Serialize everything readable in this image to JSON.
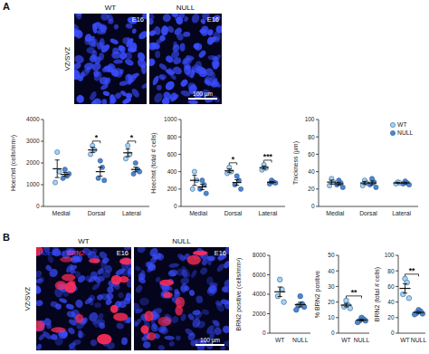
{
  "panels": [
    {
      "label": "A",
      "region": "VZ/SVZ",
      "stage": "E16",
      "conditions": [
        "WT",
        "NULL"
      ],
      "scale_bar": "100 µm",
      "color": "#3a4dff"
    },
    {
      "label": "B",
      "region": "VZ/SVZ",
      "stage": "E16",
      "conditions": [
        "WT",
        "NULL"
      ],
      "scale_bar": "100 µm",
      "channels": [
        {
          "name": "Hoechst",
          "color": "#3a4dff"
        },
        {
          "name": "BRN2",
          "color": "#ff2d5a"
        }
      ]
    }
  ],
  "chart_data": [
    {
      "type": "dot_plot",
      "ylabel": "Hoechst (cells/mm²)",
      "categories": [
        "Medial",
        "Dorsal",
        "Lateral"
      ],
      "ylim": [
        0,
        4000
      ],
      "yticks": [
        0,
        1000,
        2000,
        3000,
        4000
      ],
      "series": [
        {
          "name": "WT",
          "color": "#a9d3ee",
          "values": [
            1733,
            2600,
            2467
          ],
          "error": [
            404,
            115,
            176
          ],
          "points": [
            [
              2500,
              1600,
              1100
            ],
            [
              2800,
              2600,
              2400
            ],
            [
              2800,
              2400,
              2200
            ]
          ]
        },
        {
          "name": "NULL",
          "color": "#4f86cc",
          "values": [
            1475,
            1600,
            1700
          ],
          "error": [
            85,
            208,
            108
          ],
          "points": [
            [
              1700,
              1400,
              1300,
              1500
            ],
            [
              2100,
              1800,
              1300,
              1200
            ],
            [
              2000,
              1700,
              1500,
              1600
            ]
          ]
        }
      ],
      "annotations": [
        {
          "text": "*",
          "category": 1
        },
        {
          "text": "*",
          "category": 2
        }
      ]
    },
    {
      "type": "dot_plot",
      "ylabel": "Hoechst (total # cells)",
      "categories": [
        "Medial",
        "Dorsal",
        "Lateral"
      ],
      "ylim": [
        0,
        1000
      ],
      "yticks": [
        0,
        200,
        400,
        600,
        800,
        1000
      ],
      "series": [
        {
          "name": "WT",
          "color": "#a9d3ee",
          "values": [
            300,
            410,
            447
          ],
          "error": [
            58,
            21,
            18
          ],
          "points": [
            [
              400,
              300,
              200
            ],
            [
              450,
              400,
              380
            ],
            [
              480,
              440,
              420
            ]
          ]
        },
        {
          "name": "NULL",
          "color": "#4f86cc",
          "values": [
            225,
            275,
            278
          ],
          "error": [
            32,
            32,
            9
          ],
          "points": [
            [
              300,
              250,
              200,
              150
            ],
            [
              350,
              300,
              250,
              200
            ],
            [
              300,
              280,
              260,
              270
            ]
          ]
        }
      ],
      "annotations": [
        {
          "text": "*",
          "category": 1
        },
        {
          "text": "***",
          "category": 2
        }
      ]
    },
    {
      "type": "dot_plot",
      "ylabel": "Thickness (µm)",
      "categories": [
        "Medial",
        "Dorsal",
        "Lateral"
      ],
      "ylim": [
        0,
        100
      ],
      "yticks": [
        0,
        20,
        40,
        60,
        80,
        100
      ],
      "legend": "upper right",
      "series": [
        {
          "name": "WT",
          "color": "#a9d3ee",
          "values": [
            28,
            27,
            27
          ],
          "error": [
            2.3,
            1.7,
            0.6
          ],
          "points": [
            [
              32,
              28,
              24
            ],
            [
              30,
              27,
              24
            ],
            [
              28,
              27,
              26
            ]
          ]
        },
        {
          "name": "NULL",
          "color": "#4f86cc",
          "values": [
            26,
            27,
            27
          ],
          "error": [
            1.7,
            2.2,
            0.9
          ],
          "points": [
            [
              30,
              27,
              25,
              22
            ],
            [
              32,
              28,
              25,
              22
            ],
            [
              29,
              27,
              26,
              25
            ]
          ]
        }
      ]
    },
    {
      "type": "dot_plot",
      "ylabel": "BRN2 positive (cells/mm²)",
      "categories": [
        "WT",
        "NULL"
      ],
      "ylim": [
        0,
        8000
      ],
      "yticks": [
        0,
        2000,
        4000,
        6000,
        8000
      ],
      "values": [
        4250,
        2940
      ],
      "error": [
        490,
        240
      ],
      "points": [
        [
          5500,
          4500,
          3800,
          3200
        ],
        [
          3800,
          3000,
          2800,
          2700,
          2400
        ]
      ],
      "colors": [
        "#a9d3ee",
        "#4f86cc"
      ]
    },
    {
      "type": "dot_plot",
      "ylabel": "% BRN2 positive",
      "categories": [
        "WT",
        "NULL"
      ],
      "ylim": [
        0,
        50
      ],
      "yticks": [
        0,
        10,
        20,
        30,
        40,
        50
      ],
      "values": [
        18,
        8.4
      ],
      "error": [
        1.1,
        0.5
      ],
      "points": [
        [
          21,
          18,
          17,
          16
        ],
        [
          10,
          9,
          8,
          8,
          7
        ]
      ],
      "colors": [
        "#a9d3ee",
        "#4f86cc"
      ],
      "annotations": [
        {
          "text": "**",
          "categories": [
            0,
            1
          ]
        }
      ]
    },
    {
      "type": "dot_plot",
      "ylabel": "BRN2 (total # cells)",
      "categories": [
        "WT",
        "NULL"
      ],
      "ylim": [
        0,
        100
      ],
      "yticks": [
        0,
        20,
        40,
        60,
        80,
        100
      ],
      "values": [
        57.5,
        26.6
      ],
      "error": [
        6,
        1.1
      ],
      "points": [
        [
          70,
          65,
          50,
          45
        ],
        [
          30,
          28,
          26,
          25,
          24
        ]
      ],
      "colors": [
        "#a9d3ee",
        "#4f86cc"
      ],
      "annotations": [
        {
          "text": "**",
          "categories": [
            0,
            1
          ]
        }
      ]
    }
  ]
}
